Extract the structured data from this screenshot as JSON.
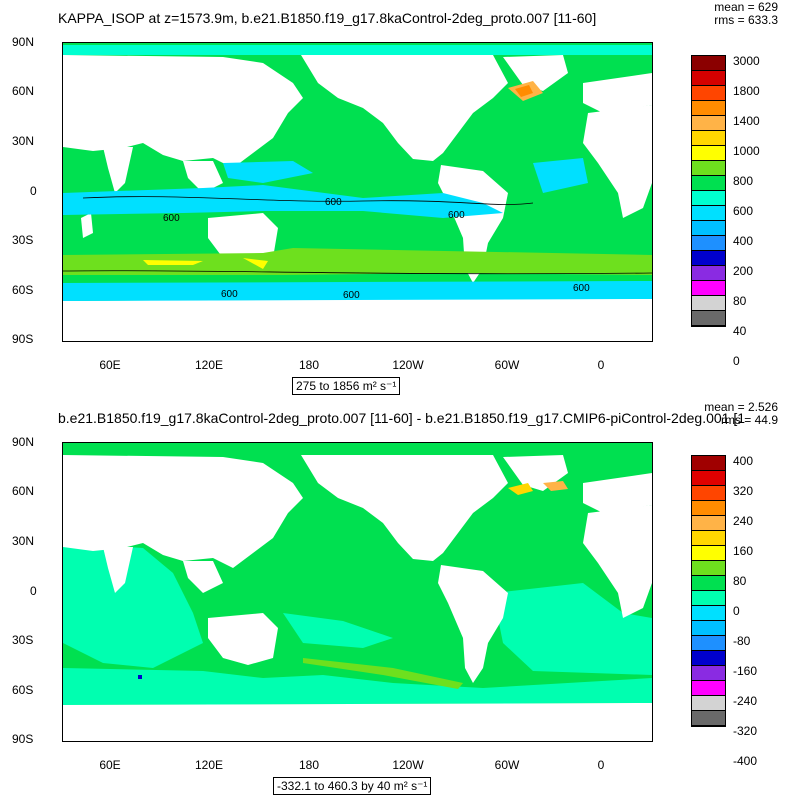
{
  "panels": [
    {
      "title": "KAPPA_ISOP at z=1573.9m, b.e21.B1850.f19_g17.8kaControl-2deg_proto.007 [11-60]",
      "stats": [
        "mean = 629",
        "rms = 633.3"
      ],
      "range_label": "275 to 1856 m² s⁻¹",
      "contour_labels": [
        "600"
      ],
      "colorbar": {
        "labels": [
          "3000",
          "1800",
          "1400",
          "1000",
          "800",
          "600",
          "400",
          "200",
          "80",
          "40",
          "0"
        ],
        "colors": [
          "#8b0000",
          "#d40000",
          "#ff4500",
          "#ff8c00",
          "#ffb347",
          "#ffd700",
          "#ffff00",
          "#6ee01e",
          "#00e050",
          "#00ffd0",
          "#00e0ff",
          "#00bfff",
          "#1e90ff",
          "#0000cd",
          "#8a2be2",
          "#ff00ff",
          "#d3d3d3",
          "#696969"
        ]
      }
    },
    {
      "title": "b.e21.B1850.f19_g17.8kaControl-2deg_proto.007 [11-60] - b.e21.B1850.f19_g17.CMIP6-piControl-2deg.001 [1",
      "stats": [
        "mean = 2.526",
        "rms = 44.9"
      ],
      "range_label": "-332.1 to 460.3 by 40 m² s⁻¹",
      "colorbar": {
        "labels": [
          "400",
          "320",
          "240",
          "160",
          "80",
          "0",
          "-80",
          "-160",
          "-240",
          "-320",
          "-400"
        ],
        "colors": [
          "#a00000",
          "#e00000",
          "#ff4500",
          "#ff8c00",
          "#ffb347",
          "#ffd700",
          "#ffff00",
          "#6ee01e",
          "#00e050",
          "#00ffb0",
          "#00e0ff",
          "#00bfff",
          "#1e90ff",
          "#0000cd",
          "#8a2be2",
          "#ff00ff",
          "#d3d3d3",
          "#696969"
        ]
      }
    }
  ],
  "lat_labels": [
    "90N",
    "60N",
    "30N",
    "0",
    "30S",
    "60S",
    "90S"
  ],
  "lon_labels": [
    "60E",
    "120E",
    "180",
    "120W",
    "60W",
    "0"
  ]
}
